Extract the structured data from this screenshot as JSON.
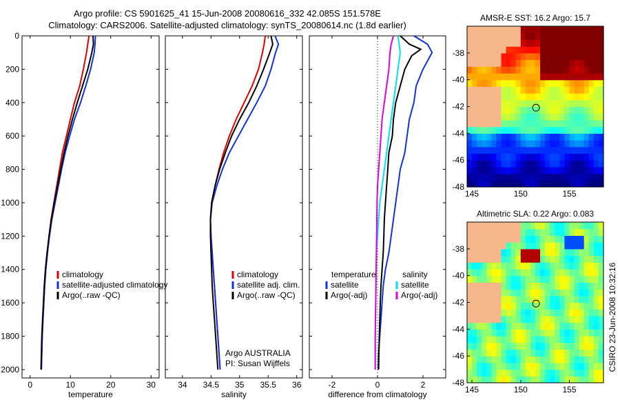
{
  "title_line1": "Argo profile: CS 5901625_41 15-Jun-2008 20080616_332 42.085S 151.578E",
  "title_line2": "Climatology: CARS2006. Satellite-adjusted climatology: synTS_20080614.nc (1.8d earlier)",
  "chart_data": [
    {
      "type": "line",
      "xlabel": "temperature",
      "ylabel": "",
      "xlim": [
        -2,
        32
      ],
      "ylim": [
        2050,
        0
      ],
      "xticks": [
        0,
        10,
        20,
        30
      ],
      "yticks": [
        0,
        200,
        400,
        600,
        800,
        1000,
        1200,
        1400,
        1600,
        1800,
        2000
      ],
      "legend": [
        "climatology",
        "satellite-adjusted climatology",
        "Argo(..raw -QC)"
      ],
      "series": [
        {
          "name": "climatology",
          "color": "#e00000",
          "points": [
            [
              14.6,
              0
            ],
            [
              14.3,
              50
            ],
            [
              14.0,
              100
            ],
            [
              13.2,
              200
            ],
            [
              12.3,
              300
            ],
            [
              11.0,
              400
            ],
            [
              10.0,
              500
            ],
            [
              9.0,
              600
            ],
            [
              8.0,
              700
            ],
            [
              7.3,
              800
            ],
            [
              6.6,
              900
            ],
            [
              5.9,
              1000
            ],
            [
              5.2,
              1100
            ],
            [
              4.7,
              1200
            ],
            [
              4.3,
              1300
            ],
            [
              3.9,
              1400
            ],
            [
              3.6,
              1500
            ],
            [
              3.4,
              1600
            ],
            [
              3.2,
              1700
            ],
            [
              3.0,
              1800
            ],
            [
              2.9,
              1900
            ],
            [
              2.8,
              2000
            ]
          ]
        },
        {
          "name": "satellite-adjusted climatology",
          "color": "#1030e0",
          "points": [
            [
              16.2,
              0
            ],
            [
              16.1,
              50
            ],
            [
              15.9,
              100
            ],
            [
              15.0,
              200
            ],
            [
              13.8,
              300
            ],
            [
              12.5,
              400
            ],
            [
              11.0,
              500
            ],
            [
              9.8,
              600
            ],
            [
              8.7,
              700
            ],
            [
              7.8,
              800
            ],
            [
              7.0,
              900
            ],
            [
              6.2,
              1000
            ],
            [
              5.4,
              1100
            ],
            [
              4.8,
              1200
            ],
            [
              4.3,
              1300
            ],
            [
              3.9,
              1400
            ],
            [
              3.6,
              1500
            ],
            [
              3.4,
              1600
            ],
            [
              3.2,
              1700
            ],
            [
              3.0,
              1800
            ],
            [
              2.9,
              1900
            ],
            [
              2.8,
              2000
            ]
          ]
        },
        {
          "name": "Argo(..raw -QC)",
          "color": "#000000",
          "points": [
            [
              15.6,
              0
            ],
            [
              15.7,
              50
            ],
            [
              15.3,
              100
            ],
            [
              14.3,
              200
            ],
            [
              13.0,
              300
            ],
            [
              11.7,
              400
            ],
            [
              10.5,
              500
            ],
            [
              9.4,
              600
            ],
            [
              8.4,
              700
            ],
            [
              7.6,
              800
            ],
            [
              6.8,
              900
            ],
            [
              6.0,
              1000
            ],
            [
              5.3,
              1100
            ],
            [
              4.7,
              1200
            ],
            [
              4.2,
              1300
            ],
            [
              3.8,
              1400
            ],
            [
              3.5,
              1500
            ],
            [
              3.3,
              1600
            ],
            [
              3.1,
              1700
            ],
            [
              2.9,
              1800
            ],
            [
              2.8,
              1900
            ],
            [
              2.7,
              2000
            ]
          ]
        }
      ]
    },
    {
      "type": "line",
      "xlabel": "salinity",
      "ylabel": "",
      "xlim": [
        33.7,
        36.1
      ],
      "ylim": [
        2050,
        0
      ],
      "xticks": [
        34,
        34.5,
        35,
        35.5,
        36
      ],
      "legend": [
        "climatology",
        "satellite adj. clim.",
        "Argo(..raw -QC)"
      ],
      "annotation": [
        "Argo AUSTRALIA",
        "PI: Susan Wijffels"
      ],
      "series": [
        {
          "name": "climatology",
          "color": "#e00000",
          "points": [
            [
              35.45,
              0
            ],
            [
              35.43,
              50
            ],
            [
              35.4,
              100
            ],
            [
              35.33,
              200
            ],
            [
              35.22,
              300
            ],
            [
              35.08,
              400
            ],
            [
              34.94,
              500
            ],
            [
              34.82,
              600
            ],
            [
              34.72,
              700
            ],
            [
              34.64,
              800
            ],
            [
              34.57,
              900
            ],
            [
              34.51,
              1000
            ],
            [
              34.49,
              1100
            ],
            [
              34.5,
              1200
            ],
            [
              34.52,
              1300
            ],
            [
              34.54,
              1400
            ],
            [
              34.56,
              1500
            ],
            [
              34.58,
              1600
            ],
            [
              34.6,
              1700
            ],
            [
              34.62,
              1800
            ],
            [
              34.64,
              1900
            ],
            [
              34.66,
              2000
            ]
          ]
        },
        {
          "name": "satellite adj. clim.",
          "color": "#1030e0",
          "points": [
            [
              35.62,
              0
            ],
            [
              35.68,
              50
            ],
            [
              35.63,
              100
            ],
            [
              35.55,
              200
            ],
            [
              35.45,
              300
            ],
            [
              35.3,
              400
            ],
            [
              35.14,
              500
            ],
            [
              34.98,
              600
            ],
            [
              34.82,
              700
            ],
            [
              34.7,
              800
            ],
            [
              34.6,
              900
            ],
            [
              34.52,
              1000
            ],
            [
              34.49,
              1100
            ],
            [
              34.5,
              1200
            ],
            [
              34.52,
              1300
            ],
            [
              34.54,
              1400
            ],
            [
              34.56,
              1500
            ],
            [
              34.58,
              1600
            ],
            [
              34.6,
              1700
            ],
            [
              34.62,
              1800
            ],
            [
              34.64,
              1900
            ],
            [
              34.66,
              2000
            ]
          ]
        },
        {
          "name": "Argo(..raw -QC)",
          "color": "#000000",
          "points": [
            [
              35.55,
              0
            ],
            [
              35.58,
              50
            ],
            [
              35.53,
              100
            ],
            [
              35.42,
              200
            ],
            [
              35.3,
              300
            ],
            [
              35.16,
              400
            ],
            [
              35.0,
              500
            ],
            [
              34.86,
              600
            ],
            [
              34.75,
              700
            ],
            [
              34.65,
              800
            ],
            [
              34.57,
              900
            ],
            [
              34.51,
              1000
            ],
            [
              34.49,
              1100
            ],
            [
              34.49,
              1200
            ],
            [
              34.5,
              1300
            ],
            [
              34.51,
              1400
            ],
            [
              34.52,
              1500
            ],
            [
              34.54,
              1600
            ],
            [
              34.56,
              1700
            ],
            [
              34.58,
              1800
            ],
            [
              34.6,
              1900
            ],
            [
              34.62,
              2000
            ]
          ]
        }
      ]
    },
    {
      "type": "line",
      "xlabel": "difference from climatology",
      "ylabel": "",
      "xlim": [
        -3,
        3
      ],
      "ylim": [
        2050,
        0
      ],
      "xticks": [
        -2,
        0,
        2
      ],
      "legend": [
        "temperature",
        "satellite",
        "Argo(-adj)",
        "salinity",
        "satellite",
        "Argo(-adj)"
      ],
      "series": [
        {
          "name": "temperature satellite",
          "color": "#1030e0",
          "points": [
            [
              1.6,
              0
            ],
            [
              2.2,
              50
            ],
            [
              2.4,
              100
            ],
            [
              2.0,
              200
            ],
            [
              1.7,
              300
            ],
            [
              1.6,
              400
            ],
            [
              1.4,
              500
            ],
            [
              1.3,
              600
            ],
            [
              1.2,
              700
            ],
            [
              1.0,
              800
            ],
            [
              0.9,
              900
            ],
            [
              0.8,
              1000
            ],
            [
              0.7,
              1100
            ],
            [
              0.6,
              1200
            ],
            [
              0.5,
              1300
            ],
            [
              0.35,
              1400
            ],
            [
              0.25,
              1500
            ],
            [
              0.2,
              1600
            ],
            [
              0.15,
              1700
            ],
            [
              0.1,
              1800
            ],
            [
              0.05,
              1900
            ],
            [
              0.03,
              2000
            ]
          ]
        },
        {
          "name": "temperature Argo(-adj)",
          "color": "#000000",
          "points": [
            [
              1.0,
              0
            ],
            [
              1.4,
              50
            ],
            [
              1.9,
              80
            ],
            [
              1.5,
              120
            ],
            [
              1.2,
              200
            ],
            [
              1.0,
              300
            ],
            [
              0.8,
              400
            ],
            [
              0.7,
              500
            ],
            [
              0.65,
              600
            ],
            [
              0.5,
              700
            ],
            [
              0.45,
              800
            ],
            [
              0.4,
              900
            ],
            [
              0.35,
              1000
            ],
            [
              0.3,
              1100
            ],
            [
              0.28,
              1200
            ],
            [
              0.25,
              1300
            ],
            [
              0.2,
              1400
            ],
            [
              0.15,
              1500
            ],
            [
              0.12,
              1600
            ],
            [
              0.1,
              1700
            ],
            [
              0.08,
              1800
            ],
            [
              0.06,
              1900
            ],
            [
              0.05,
              2000
            ]
          ]
        },
        {
          "name": "salinity satellite",
          "color": "#00e0f0",
          "points": [
            [
              0.9,
              0
            ],
            [
              0.95,
              50
            ],
            [
              1.0,
              100
            ],
            [
              0.9,
              200
            ],
            [
              0.8,
              300
            ],
            [
              0.7,
              400
            ],
            [
              0.6,
              500
            ],
            [
              0.5,
              600
            ],
            [
              0.4,
              700
            ],
            [
              0.3,
              800
            ],
            [
              0.2,
              900
            ],
            [
              0.1,
              1000
            ],
            [
              0.05,
              1100
            ],
            [
              0.0,
              1200
            ],
            [
              -0.05,
              1300
            ],
            [
              -0.06,
              1400
            ],
            [
              -0.07,
              1500
            ],
            [
              -0.08,
              1600
            ],
            [
              -0.09,
              1700
            ],
            [
              -0.1,
              1800
            ],
            [
              -0.1,
              1900
            ],
            [
              -0.1,
              2000
            ]
          ]
        },
        {
          "name": "salinity Argo(-adj)",
          "color": "#e000e0",
          "points": [
            [
              0.7,
              0
            ],
            [
              0.6,
              50
            ],
            [
              0.55,
              100
            ],
            [
              0.5,
              200
            ],
            [
              0.4,
              300
            ],
            [
              0.3,
              400
            ],
            [
              0.2,
              500
            ],
            [
              0.15,
              600
            ],
            [
              0.1,
              700
            ],
            [
              0.05,
              800
            ],
            [
              0.0,
              900
            ],
            [
              -0.02,
              1000
            ],
            [
              -0.03,
              1100
            ],
            [
              -0.04,
              1200
            ],
            [
              -0.05,
              1300
            ],
            [
              -0.06,
              1400
            ],
            [
              -0.07,
              1500
            ],
            [
              -0.08,
              1600
            ],
            [
              -0.09,
              1700
            ],
            [
              -0.1,
              1800
            ],
            [
              -0.1,
              1900
            ],
            [
              -0.1,
              2000
            ]
          ]
        }
      ]
    },
    {
      "type": "heatmap",
      "title": "AMSR-E SST: 16.2 Argo: 15.7",
      "xticks": [
        145,
        150,
        155
      ],
      "yticks": [
        -38,
        -40,
        -42,
        -44,
        -46,
        -48
      ],
      "xlim": [
        144.5,
        158.5
      ],
      "ylim": [
        -48,
        -36
      ],
      "marker": [
        151.578,
        -42.085
      ]
    },
    {
      "type": "heatmap",
      "title": "Altimetric SLA: 0.22 Argo: 0.083",
      "xticks": [
        145,
        150,
        155
      ],
      "yticks": [
        -38,
        -40,
        -42,
        -44,
        -46,
        -48
      ],
      "xlim": [
        144.5,
        158.5
      ],
      "ylim": [
        -48,
        -36
      ],
      "marker": [
        151.578,
        -42.085
      ]
    }
  ],
  "side_label": "CSIRO 23-Jun-2008 10:32:16"
}
